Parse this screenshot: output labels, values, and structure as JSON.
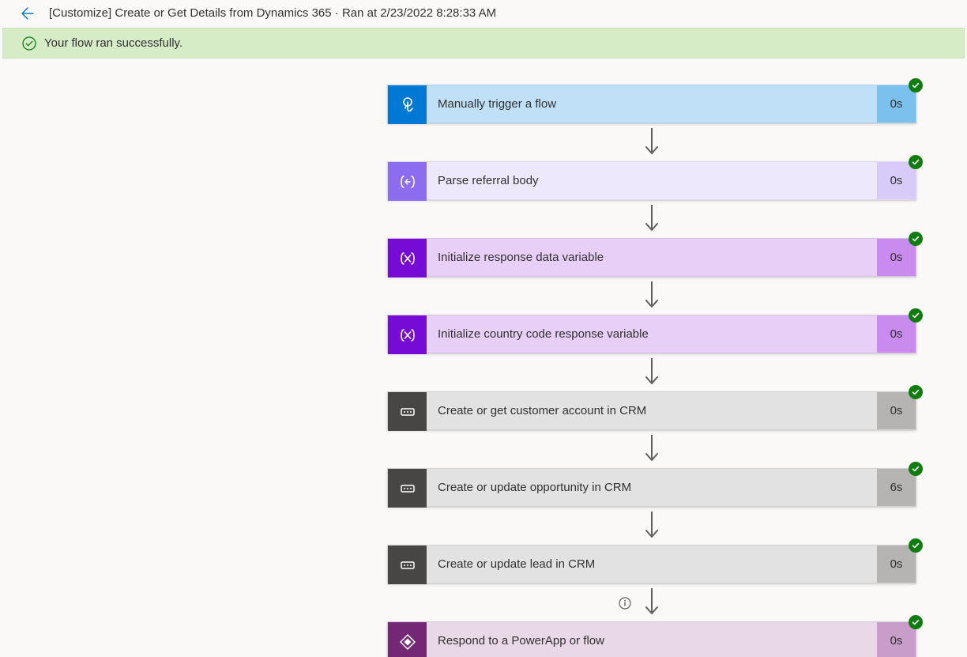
{
  "header": {
    "title": "[Customize] Create or Get Details from Dynamics 365 · Ran at 2/23/2022 8:28:33 AM"
  },
  "banner": {
    "message": "Your flow ran successfully."
  },
  "colors": {
    "success_check": "#107c10",
    "arrow": "#605e5c",
    "back_arrow": "#0078d4"
  },
  "steps": [
    {
      "label": "Manually trigger a flow",
      "duration": "0s",
      "icon": "touch",
      "icon_bg": "#0078d4",
      "body_bg": "#bfe0f6",
      "duration_bg": "#7cc0ed",
      "text_color": "#323130",
      "info_after": false
    },
    {
      "label": "Parse referral body",
      "duration": "0s",
      "icon": "data-op",
      "icon_bg": "#8c6cef",
      "body_bg": "#eee8fd",
      "duration_bg": "#d8cbfa",
      "text_color": "#323130",
      "info_after": false
    },
    {
      "label": "Initialize response data variable",
      "duration": "0s",
      "icon": "variable",
      "icon_bg": "#770bd6",
      "body_bg": "#e8cff8",
      "duration_bg": "#ca8bee",
      "text_color": "#323130",
      "info_after": false
    },
    {
      "label": "Initialize country code response variable",
      "duration": "0s",
      "icon": "variable",
      "icon_bg": "#770bd6",
      "body_bg": "#e8cff8",
      "duration_bg": "#ca8bee",
      "text_color": "#323130",
      "info_after": false
    },
    {
      "label": "Create or get customer account in CRM",
      "duration": "0s",
      "icon": "control",
      "icon_bg": "#484644",
      "body_bg": "#e2e2e2",
      "duration_bg": "#b6b4b3",
      "text_color": "#323130",
      "info_after": false
    },
    {
      "label": "Create or update opportunity in CRM",
      "duration": "6s",
      "icon": "control",
      "icon_bg": "#484644",
      "body_bg": "#e2e2e2",
      "duration_bg": "#b6b4b3",
      "text_color": "#323130",
      "info_after": false
    },
    {
      "label": "Create or update lead in CRM",
      "duration": "0s",
      "icon": "control",
      "icon_bg": "#484644",
      "body_bg": "#e2e2e2",
      "duration_bg": "#b6b4b3",
      "text_color": "#323130",
      "info_after": true
    },
    {
      "label": "Respond to a PowerApp or flow",
      "duration": "0s",
      "icon": "powerapps",
      "icon_bg": "#742774",
      "body_bg": "#e8d8e8",
      "duration_bg": "#c99dc9",
      "text_color": "#323130",
      "info_after": false
    }
  ]
}
